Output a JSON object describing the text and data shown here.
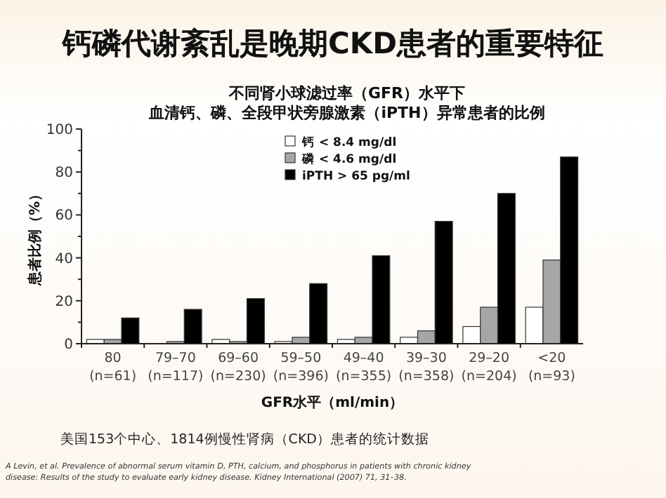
{
  "chart_data": {
    "type": "bar",
    "title": "钙磷代谢紊乱是晚期CKD患者的重要特征",
    "subtitle": "不同肾小球滤过率（GFR）水平下",
    "xlabel": "GFR水平（ml/min）",
    "ylabel": "患者比例（%）",
    "categories": [
      "80\n(n=61)",
      "79–70\n(n=117)",
      "69–60\n(n=230)",
      "59–50\n(n=396)",
      "49–40\n(n=355)",
      "39–30\n(n=358)",
      "29–20\n(n=204)",
      "<20\n(n=93)"
    ],
    "series": [
      {
        "name": "钙 < 8.4 mg/dl",
        "color": "#ffffff",
        "values": [
          2,
          0,
          2,
          1,
          2,
          3,
          8,
          17
        ]
      },
      {
        "name": "磷 < 4.6 mg/dl",
        "color": "#a6a6a6",
        "values": [
          2,
          1,
          1,
          3,
          3,
          6,
          17,
          39
        ]
      },
      {
        "name": "iPTH > 65 pg/ml",
        "color": "#000000",
        "values": [
          12,
          16,
          21,
          28,
          41,
          57,
          70,
          87
        ]
      }
    ],
    "ylim": [
      0,
      100
    ],
    "yticks": [
      0,
      {
        "value": 10,
        "label": null
      },
      20,
      {
        "value": 30,
        "label": null
      },
      40,
      {
        "value": 50,
        "label": null
      },
      60,
      {
        "value": 70,
        "label": null
      },
      80,
      {
        "value": 90,
        "label": null
      },
      100
    ],
    "grid": false,
    "legend": "top left",
    "annotations": [
      "血清钙、磷、全段甲状旁腺激素（iPTH）异常患者的比例",
      "美国153个中心、1814例慢性肾病（CKD）患者的统计数据",
      "A Levin, et al. Prevalence of abnormal serum vitamin D, PTH, calcium, and phosphorus in patients with chronic kidney disease: Results of the study to evaluate early kidney disease. Kidney International (2007) 71, 31–38."
    ]
  }
}
